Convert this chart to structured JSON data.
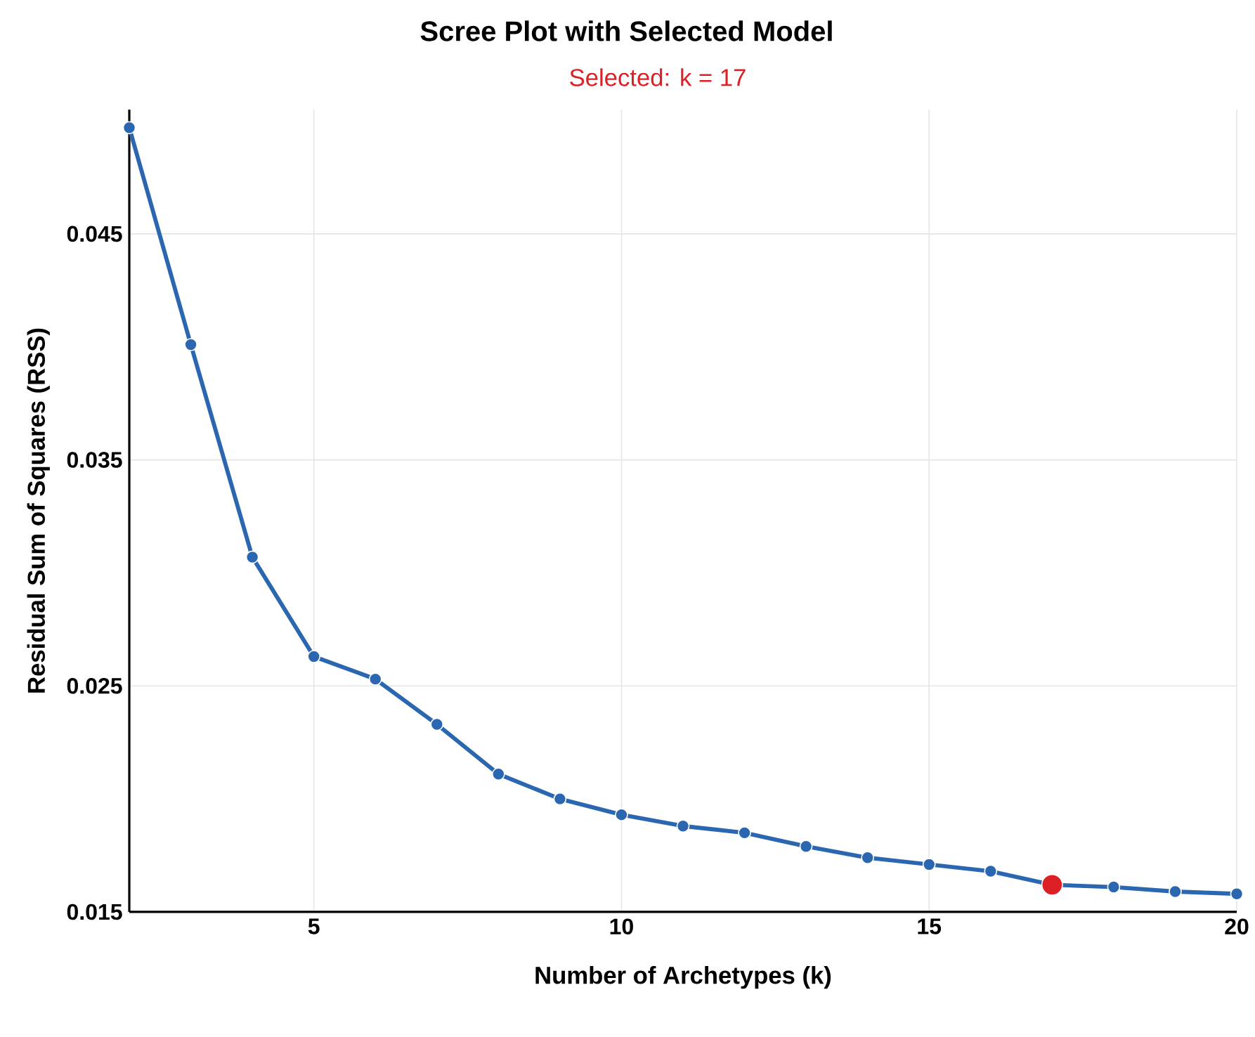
{
  "chart_data": {
    "type": "line",
    "title": "Scree Plot with Selected Model",
    "subtitle": "Selected: k = 17",
    "xlabel": "Number of Archetypes (k)",
    "ylabel": "Residual Sum of Squares (RSS)",
    "xlim": [
      2,
      20
    ],
    "xticks": [
      5,
      10,
      15,
      20
    ],
    "ylim": [
      0.015,
      0.0505
    ],
    "yticks": [
      0.015,
      0.025,
      0.035,
      0.045
    ],
    "grid": true,
    "marker": "circle",
    "line_style": "solid",
    "series": [
      {
        "color": "#2b67b1",
        "x": [
          2,
          3,
          4,
          5,
          6,
          7,
          8,
          9,
          10,
          11,
          12,
          13,
          14,
          15,
          16,
          17,
          18,
          19,
          20
        ],
        "values": [
          0.0497,
          0.0401,
          0.0307,
          0.0263,
          0.0253,
          0.0233,
          0.0211,
          0.02,
          0.0193,
          0.0188,
          0.0185,
          0.0179,
          0.0174,
          0.0171,
          0.0168,
          0.0162,
          0.0161,
          0.0159,
          0.0158
        ]
      },
      {
        "type": "scatter",
        "color": "#dd1f26",
        "x": [
          17
        ],
        "values": [
          0.0162
        ]
      }
    ]
  }
}
